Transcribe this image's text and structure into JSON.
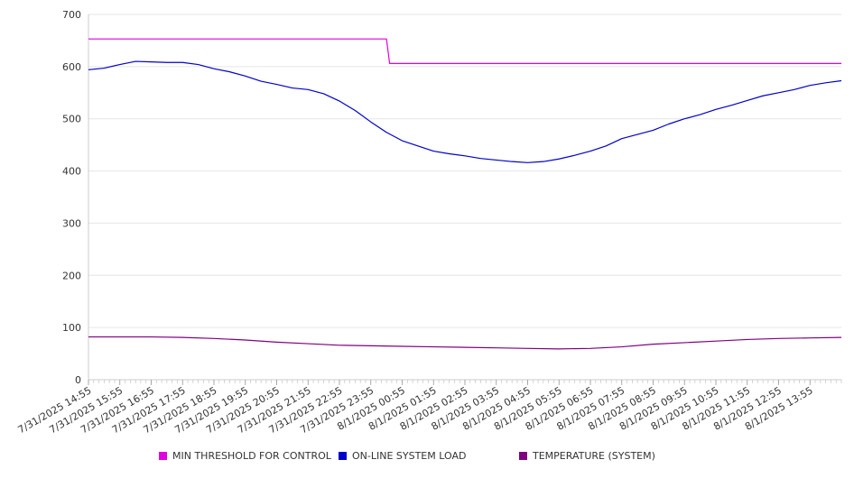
{
  "chart_data": {
    "type": "line",
    "ylim": [
      0,
      700
    ],
    "y_ticks": [
      0,
      100,
      200,
      300,
      400,
      500,
      600,
      700
    ],
    "x_tick_labels": [
      "7/31/2025 14:55",
      "7/31/2025 15:55",
      "7/31/2025 16:55",
      "7/31/2025 17:55",
      "7/31/2025 18:55",
      "7/31/2025 19:55",
      "7/31/2025 20:55",
      "7/31/2025 21:55",
      "7/31/2025 22:55",
      "7/31/2025 23:55",
      "8/1/2025 00:55",
      "8/1/2025 01:55",
      "8/1/2025 02:55",
      "8/1/2025 03:55",
      "8/1/2025 04:55",
      "8/1/2025 05:55",
      "8/1/2025 06:55",
      "8/1/2025 07:55",
      "8/1/2025 08:55",
      "8/1/2025 09:55",
      "8/1/2025 10:55",
      "8/1/2025 11:55",
      "8/1/2025 12:55",
      "8/1/2025 13:55"
    ],
    "x_range_hours": [
      0,
      24
    ],
    "grid": true,
    "legend_position": "bottom",
    "series": [
      {
        "name": "MIN THRESHOLD FOR CONTROL",
        "color": "#e000e0",
        "points": [
          [
            0,
            653
          ],
          [
            9.5,
            653
          ],
          [
            9.6,
            606
          ],
          [
            24,
            606
          ]
        ]
      },
      {
        "name": "ON-LINE SYSTEM LOAD",
        "color": "#0000cc",
        "points": [
          [
            0,
            594
          ],
          [
            0.5,
            597
          ],
          [
            1.0,
            604
          ],
          [
            1.5,
            610
          ],
          [
            2.0,
            609
          ],
          [
            2.5,
            608
          ],
          [
            3.0,
            608
          ],
          [
            3.5,
            604
          ],
          [
            4.0,
            596
          ],
          [
            4.5,
            590
          ],
          [
            5.0,
            582
          ],
          [
            5.5,
            572
          ],
          [
            6.0,
            566
          ],
          [
            6.5,
            559
          ],
          [
            7.0,
            556
          ],
          [
            7.5,
            548
          ],
          [
            8.0,
            534
          ],
          [
            8.5,
            516
          ],
          [
            9.0,
            494
          ],
          [
            9.5,
            474
          ],
          [
            10.0,
            458
          ],
          [
            10.5,
            448
          ],
          [
            11.0,
            438
          ],
          [
            11.5,
            433
          ],
          [
            12.0,
            429
          ],
          [
            12.5,
            424
          ],
          [
            13.0,
            421
          ],
          [
            13.5,
            418
          ],
          [
            14.0,
            416
          ],
          [
            14.5,
            418
          ],
          [
            15.0,
            423
          ],
          [
            15.5,
            430
          ],
          [
            16.0,
            438
          ],
          [
            16.5,
            448
          ],
          [
            17.0,
            462
          ],
          [
            17.5,
            470
          ],
          [
            18.0,
            478
          ],
          [
            18.5,
            490
          ],
          [
            19.0,
            500
          ],
          [
            19.5,
            508
          ],
          [
            20.0,
            518
          ],
          [
            20.5,
            526
          ],
          [
            21.0,
            535
          ],
          [
            21.5,
            544
          ],
          [
            22.0,
            550
          ],
          [
            22.5,
            556
          ],
          [
            23.0,
            564
          ],
          [
            23.5,
            569
          ],
          [
            24,
            573
          ]
        ]
      },
      {
        "name": "TEMPERATURE (SYSTEM)",
        "color": "#800080",
        "points": [
          [
            0,
            82
          ],
          [
            1,
            82
          ],
          [
            2,
            82
          ],
          [
            3,
            81
          ],
          [
            4,
            79
          ],
          [
            5,
            76
          ],
          [
            6,
            72
          ],
          [
            7,
            69
          ],
          [
            8,
            66
          ],
          [
            9,
            65
          ],
          [
            10,
            64
          ],
          [
            11,
            63
          ],
          [
            12,
            62
          ],
          [
            13,
            61
          ],
          [
            14,
            60
          ],
          [
            15,
            59
          ],
          [
            16,
            60
          ],
          [
            17,
            63
          ],
          [
            18,
            68
          ],
          [
            19,
            71
          ],
          [
            20,
            74
          ],
          [
            21,
            77
          ],
          [
            22,
            79
          ],
          [
            23,
            80
          ],
          [
            24,
            81
          ]
        ]
      }
    ]
  }
}
